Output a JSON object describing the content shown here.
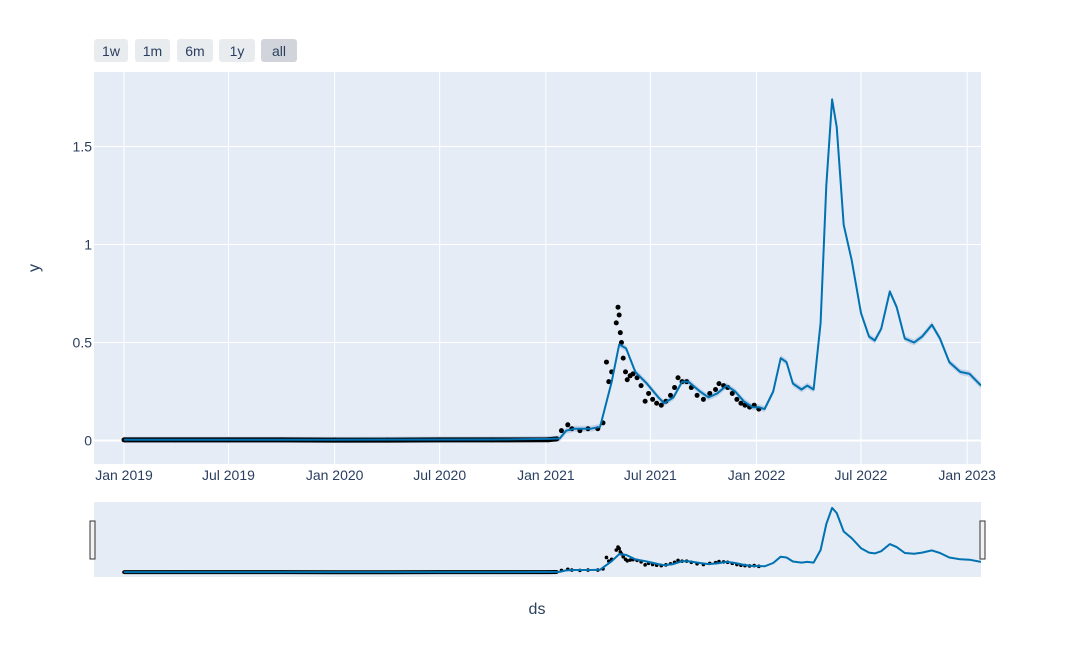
{
  "range_selector": {
    "buttons": [
      {
        "label": "1w",
        "active": false
      },
      {
        "label": "1m",
        "active": false
      },
      {
        "label": "6m",
        "active": false
      },
      {
        "label": "1y",
        "active": false
      },
      {
        "label": "all",
        "active": true
      }
    ]
  },
  "colors": {
    "plot_bg": "#e5ecf6",
    "forecast_line": "#0072b2",
    "uncertainty_band": "#b0c8e4",
    "observed_points": "#000000",
    "grid": "#ffffff",
    "text": "#2a3f5f"
  },
  "chart_data": {
    "type": "line",
    "xlabel": "ds",
    "ylabel": "y",
    "x_ticks": [
      "Jan 2019",
      "Jul 2019",
      "Jan 2020",
      "Jul 2020",
      "Jan 2021",
      "Jul 2021",
      "Jan 2022",
      "Jul 2022",
      "Jan 2023"
    ],
    "y_ticks": [
      "0",
      "0.5",
      "1",
      "1.5"
    ],
    "ylim": [
      -0.12,
      1.88
    ],
    "xlim": [
      "2018-11-10",
      "2023-01-25"
    ],
    "grid": true,
    "series": [
      {
        "role": "forecast",
        "points": [
          [
            "2019-01-01",
            0.004
          ],
          [
            "2020-01-01",
            0.004
          ],
          [
            "2020-10-01",
            0.005
          ],
          [
            "2021-01-05",
            0.008
          ],
          [
            "2021-01-25",
            0.01
          ],
          [
            "2021-02-05",
            0.05
          ],
          [
            "2021-02-20",
            0.06
          ],
          [
            "2021-03-20",
            0.06
          ],
          [
            "2021-04-05",
            0.07
          ],
          [
            "2021-04-25",
            0.3
          ],
          [
            "2021-05-08",
            0.49
          ],
          [
            "2021-05-20",
            0.47
          ],
          [
            "2021-06-05",
            0.35
          ],
          [
            "2021-06-25",
            0.29
          ],
          [
            "2021-07-15",
            0.22
          ],
          [
            "2021-07-25",
            0.19
          ],
          [
            "2021-08-10",
            0.22
          ],
          [
            "2021-08-25",
            0.3
          ],
          [
            "2021-09-05",
            0.3
          ],
          [
            "2021-09-25",
            0.25
          ],
          [
            "2021-10-10",
            0.22
          ],
          [
            "2021-10-25",
            0.24
          ],
          [
            "2021-11-10",
            0.28
          ],
          [
            "2021-11-25",
            0.25
          ],
          [
            "2021-12-10",
            0.2
          ],
          [
            "2021-12-25",
            0.17
          ],
          [
            "2022-01-05",
            0.17
          ],
          [
            "2022-01-15",
            0.16
          ],
          [
            "2022-01-30",
            0.25
          ],
          [
            "2022-02-12",
            0.42
          ],
          [
            "2022-02-22",
            0.4
          ],
          [
            "2022-03-05",
            0.29
          ],
          [
            "2022-03-20",
            0.26
          ],
          [
            "2022-03-30",
            0.28
          ],
          [
            "2022-04-10",
            0.26
          ],
          [
            "2022-04-22",
            0.6
          ],
          [
            "2022-05-02",
            1.3
          ],
          [
            "2022-05-12",
            1.74
          ],
          [
            "2022-05-20",
            1.6
          ],
          [
            "2022-06-01",
            1.1
          ],
          [
            "2022-06-15",
            0.92
          ],
          [
            "2022-07-01",
            0.65
          ],
          [
            "2022-07-15",
            0.53
          ],
          [
            "2022-07-25",
            0.51
          ],
          [
            "2022-08-05",
            0.57
          ],
          [
            "2022-08-20",
            0.76
          ],
          [
            "2022-09-01",
            0.68
          ],
          [
            "2022-09-15",
            0.52
          ],
          [
            "2022-10-01",
            0.5
          ],
          [
            "2022-10-15",
            0.53
          ],
          [
            "2022-11-01",
            0.59
          ],
          [
            "2022-11-15",
            0.52
          ],
          [
            "2022-12-01",
            0.4
          ],
          [
            "2022-12-20",
            0.35
          ],
          [
            "2023-01-05",
            0.34
          ],
          [
            "2023-01-25",
            0.28
          ]
        ]
      },
      {
        "role": "observed",
        "points": [
          [
            "2019-01-01",
            0.003
          ],
          [
            "2019-04-01",
            0.003
          ],
          [
            "2019-07-01",
            0.003
          ],
          [
            "2019-10-01",
            0.003
          ],
          [
            "2020-01-01",
            0.002
          ],
          [
            "2020-04-01",
            0.002
          ],
          [
            "2020-07-01",
            0.003
          ],
          [
            "2020-10-01",
            0.003
          ],
          [
            "2021-01-05",
            0.004
          ],
          [
            "2021-01-20",
            0.008
          ],
          [
            "2021-01-28",
            0.05
          ],
          [
            "2021-02-08",
            0.08
          ],
          [
            "2021-02-15",
            0.06
          ],
          [
            "2021-03-01",
            0.05
          ],
          [
            "2021-03-15",
            0.06
          ],
          [
            "2021-04-01",
            0.06
          ],
          [
            "2021-04-10",
            0.09
          ],
          [
            "2021-04-16",
            0.4
          ],
          [
            "2021-04-20",
            0.3
          ],
          [
            "2021-04-25",
            0.35
          ],
          [
            "2021-05-03",
            0.6
          ],
          [
            "2021-05-06",
            0.68
          ],
          [
            "2021-05-08",
            0.64
          ],
          [
            "2021-05-10",
            0.55
          ],
          [
            "2021-05-12",
            0.5
          ],
          [
            "2021-05-15",
            0.42
          ],
          [
            "2021-05-19",
            0.35
          ],
          [
            "2021-05-22",
            0.31
          ],
          [
            "2021-05-27",
            0.33
          ],
          [
            "2021-06-01",
            0.34
          ],
          [
            "2021-06-08",
            0.32
          ],
          [
            "2021-06-15",
            0.28
          ],
          [
            "2021-06-22",
            0.2
          ],
          [
            "2021-06-28",
            0.24
          ],
          [
            "2021-07-05",
            0.21
          ],
          [
            "2021-07-12",
            0.19
          ],
          [
            "2021-07-20",
            0.18
          ],
          [
            "2021-07-28",
            0.2
          ],
          [
            "2021-08-05",
            0.23
          ],
          [
            "2021-08-12",
            0.27
          ],
          [
            "2021-08-18",
            0.32
          ],
          [
            "2021-08-25",
            0.3
          ],
          [
            "2021-09-02",
            0.3
          ],
          [
            "2021-09-10",
            0.27
          ],
          [
            "2021-09-20",
            0.23
          ],
          [
            "2021-10-01",
            0.21
          ],
          [
            "2021-10-12",
            0.24
          ],
          [
            "2021-10-22",
            0.26
          ],
          [
            "2021-10-28",
            0.29
          ],
          [
            "2021-11-05",
            0.28
          ],
          [
            "2021-11-12",
            0.27
          ],
          [
            "2021-11-20",
            0.24
          ],
          [
            "2021-11-28",
            0.21
          ],
          [
            "2021-12-05",
            0.19
          ],
          [
            "2021-12-12",
            0.18
          ],
          [
            "2021-12-20",
            0.17
          ],
          [
            "2021-12-28",
            0.18
          ],
          [
            "2022-01-05",
            0.16
          ]
        ]
      }
    ]
  }
}
